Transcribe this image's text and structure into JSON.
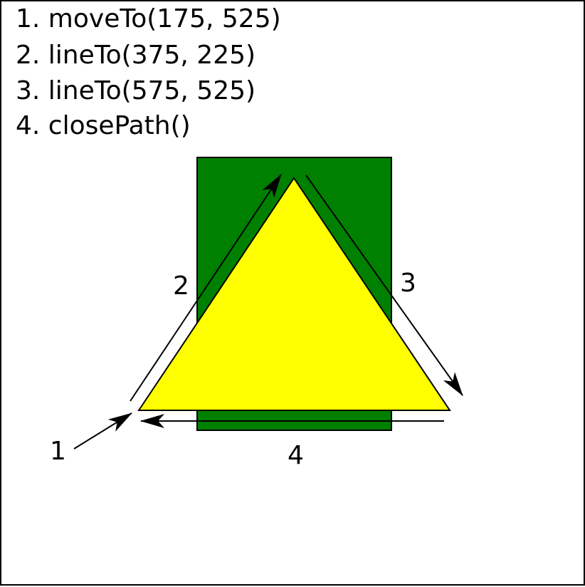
{
  "steps": [
    "1. moveTo(175, 525)",
    "2. lineTo(375, 225)",
    "3. lineTo(575, 525)",
    "4. closePath()"
  ],
  "edge_labels": [
    "1",
    "2",
    "3",
    "4"
  ],
  "colors": {
    "background": "#ffffff",
    "rectangle_fill": "#008000",
    "triangle_fill": "#ffff00",
    "stroke": "#000000"
  }
}
